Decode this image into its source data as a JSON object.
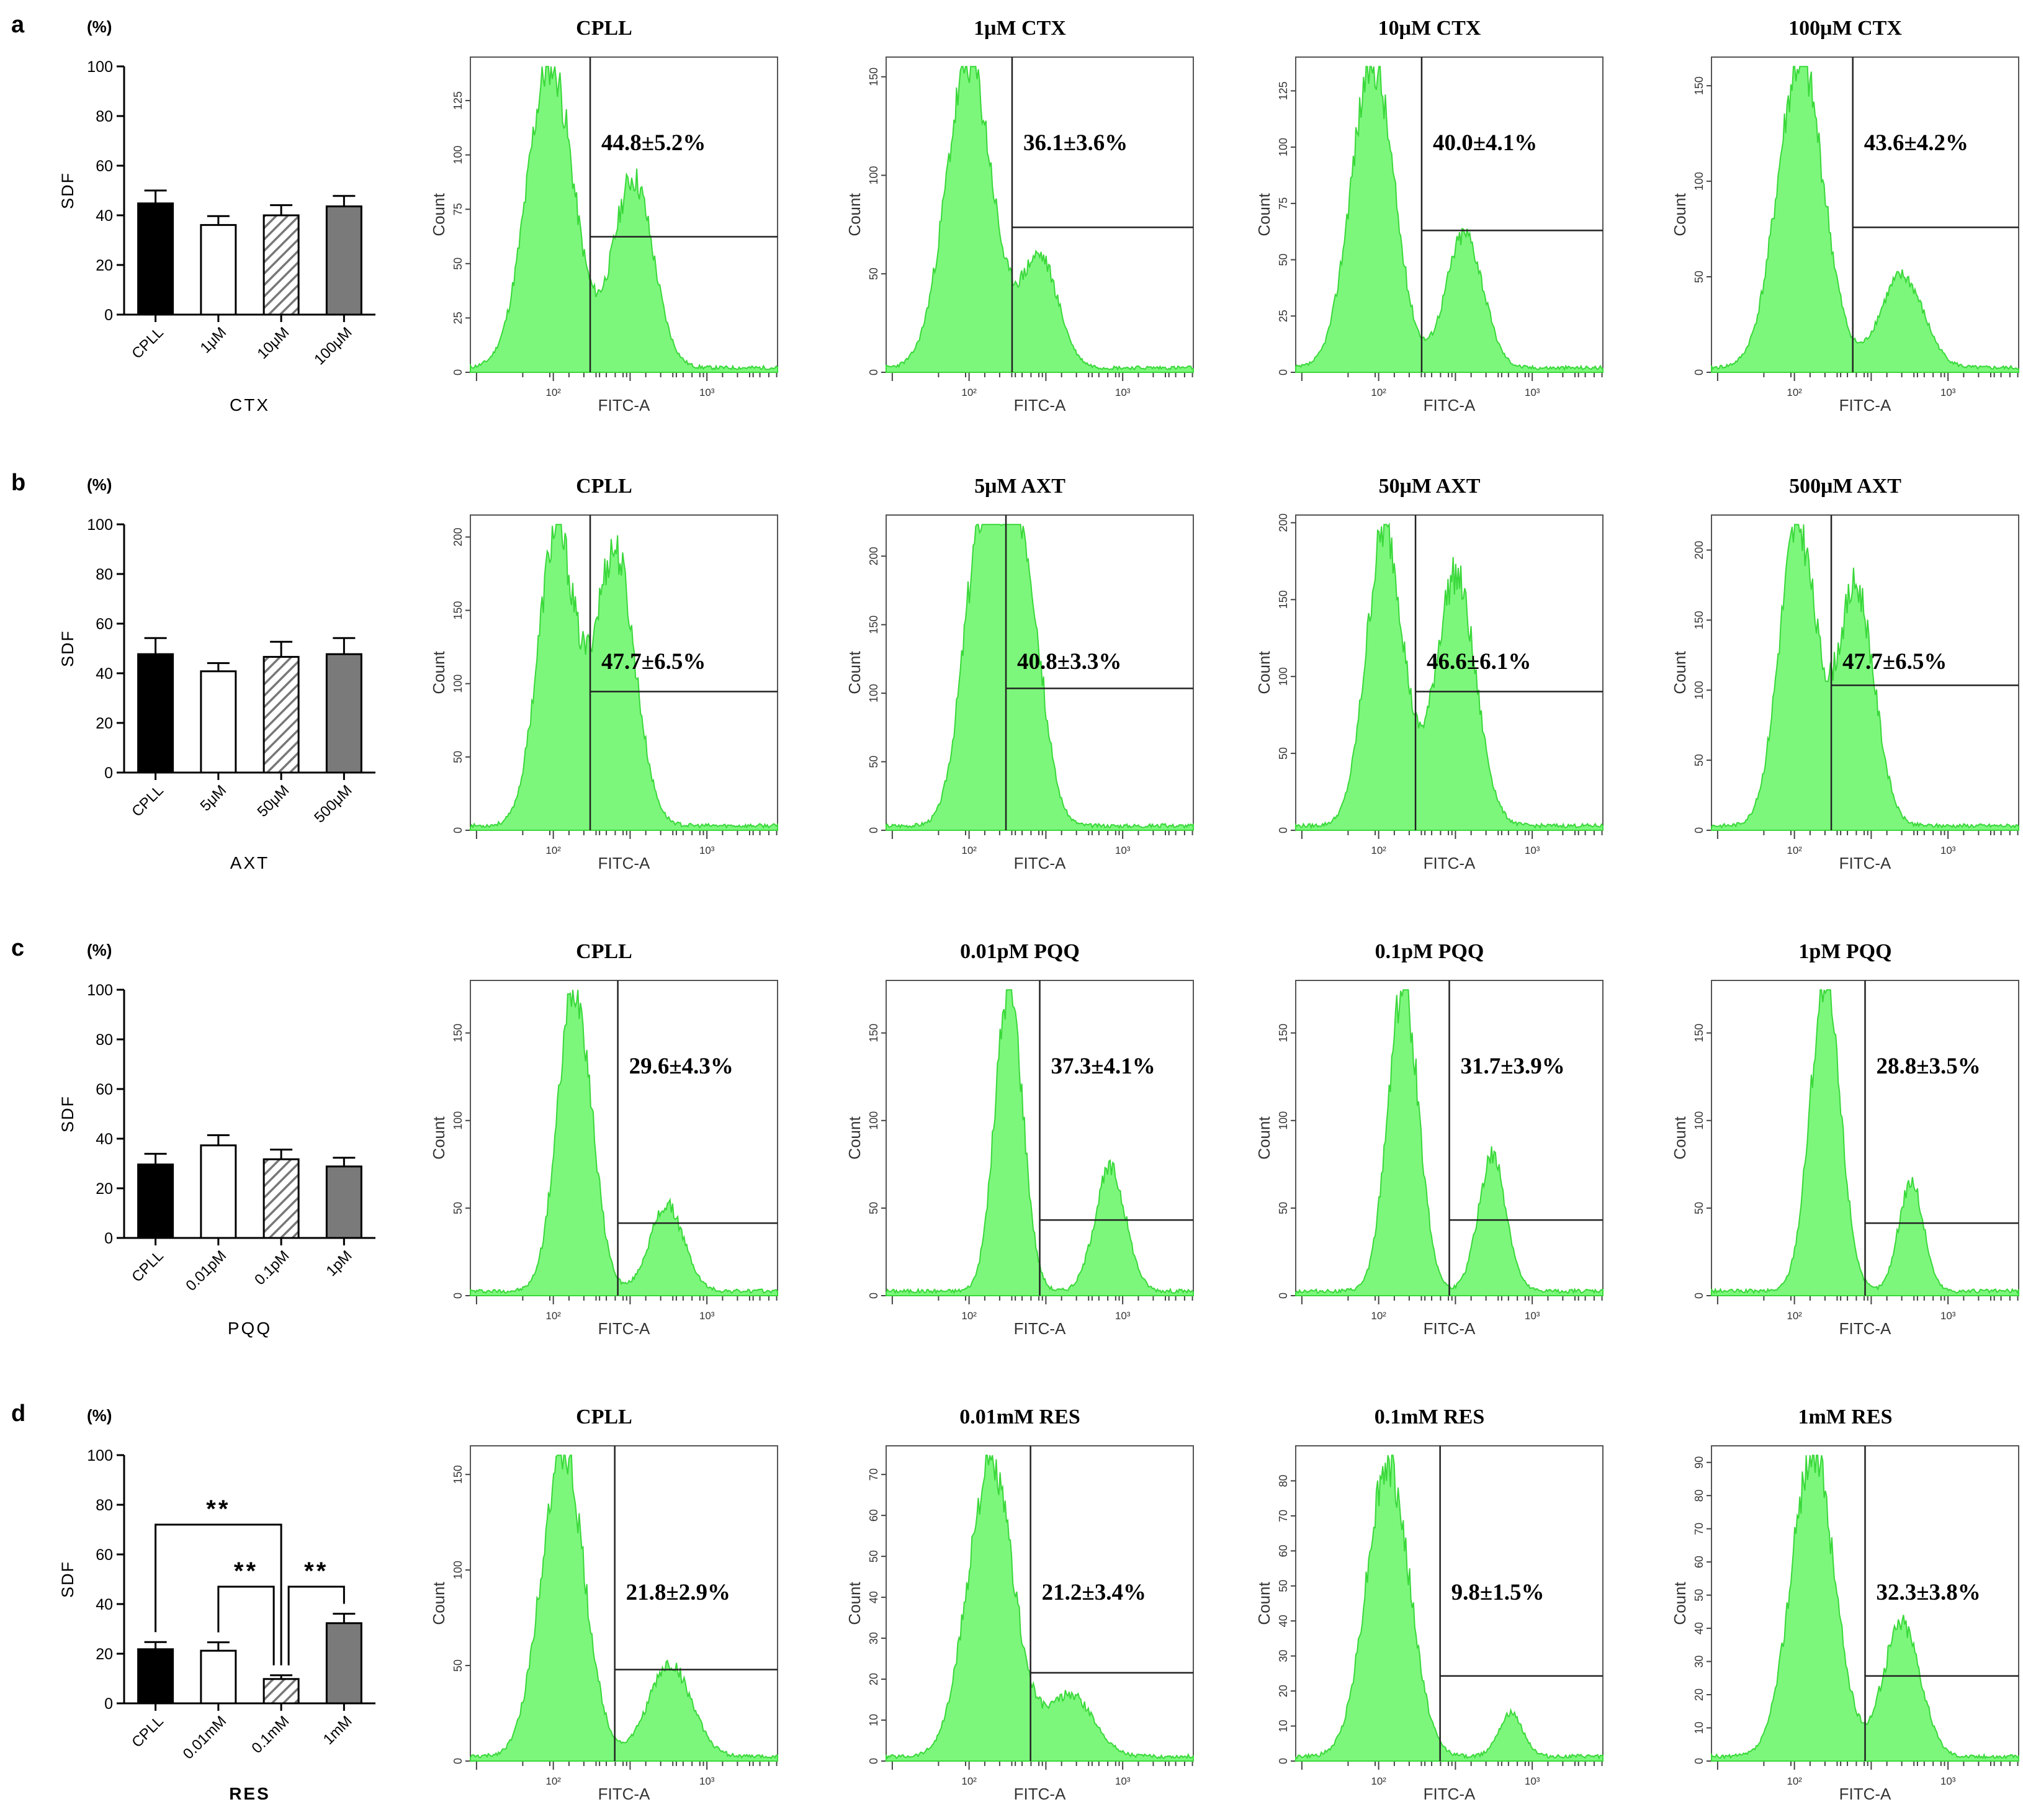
{
  "chart_data": [
    {
      "type": "bar",
      "panel": "a",
      "unit": "(%)",
      "ylabel": "SDF",
      "xlabel": "CTX",
      "ylim": [
        0,
        100
      ],
      "yticks": [
        "0",
        "20",
        "40",
        "60",
        "80",
        "100"
      ],
      "categories": [
        "CPLL",
        "1μM",
        "10μM",
        "100μM"
      ],
      "values": [
        44.8,
        36.1,
        40.0,
        43.6
      ],
      "errors": [
        5.2,
        3.6,
        4.1,
        4.2
      ],
      "fills": [
        "black",
        "white",
        "hatch",
        "gray"
      ],
      "significance": []
    },
    {
      "type": "bar",
      "panel": "b",
      "unit": "(%)",
      "ylabel": "SDF",
      "xlabel": "AXT",
      "ylim": [
        0,
        100
      ],
      "yticks": [
        "0",
        "20",
        "40",
        "60",
        "80",
        "100"
      ],
      "categories": [
        "CPLL",
        "5μM",
        "50μM",
        "500μM"
      ],
      "values": [
        47.7,
        40.8,
        46.6,
        47.7
      ],
      "errors": [
        6.5,
        3.3,
        6.1,
        6.5
      ],
      "fills": [
        "black",
        "white",
        "hatch",
        "gray"
      ],
      "significance": []
    },
    {
      "type": "bar",
      "panel": "c",
      "unit": "(%)",
      "ylabel": "SDF",
      "xlabel": "PQQ",
      "ylim": [
        0,
        100
      ],
      "yticks": [
        "0",
        "20",
        "40",
        "60",
        "80",
        "100"
      ],
      "categories": [
        "CPLL",
        "0.01pM",
        "0.1pM",
        "1pM"
      ],
      "values": [
        29.6,
        37.3,
        31.7,
        28.8
      ],
      "errors": [
        4.3,
        4.1,
        3.9,
        3.5
      ],
      "fills": [
        "black",
        "white",
        "hatch",
        "gray"
      ],
      "significance": []
    },
    {
      "type": "bar",
      "panel": "d",
      "unit": "(%)",
      "ylabel": "SDF",
      "xlabel": "RES",
      "xlabel_bold": true,
      "ylim": [
        0,
        100
      ],
      "yticks": [
        "0",
        "20",
        "40",
        "60",
        "80",
        "100"
      ],
      "categories": [
        "CPLL",
        "0.01mM",
        "0.1mM",
        "1mM"
      ],
      "values": [
        21.8,
        21.2,
        9.8,
        32.3
      ],
      "errors": [
        2.9,
        3.4,
        1.5,
        3.8
      ],
      "fills": [
        "black",
        "white",
        "hatch",
        "gray"
      ],
      "significance": [
        {
          "from": 0,
          "to": 2,
          "label": "**",
          "y": 72
        },
        {
          "from": 1,
          "to": 2,
          "label": "**",
          "y": 47
        },
        {
          "from": 2,
          "to": 3,
          "label": "**",
          "y": 47
        }
      ]
    },
    {
      "type": "histogram",
      "row": 0,
      "col": 0,
      "title": "CPLL",
      "pct_label": "44.8±5.2%",
      "xlabel": "FITC-A",
      "ylabel": "Count",
      "ymax": 145,
      "yticks": [
        0,
        25,
        50,
        75,
        100,
        125
      ],
      "x_decade_labels": [
        "10²",
        "10³"
      ],
      "gate_x": 0.39,
      "gate_y": 0.43,
      "peaks": [
        {
          "center": 0.26,
          "width": 0.075,
          "height": 1.0
        },
        {
          "center": 0.53,
          "width": 0.065,
          "height": 0.62
        }
      ],
      "noise_seed": 11
    },
    {
      "type": "histogram",
      "row": 0,
      "col": 1,
      "title": "1μM CTX",
      "pct_label": "36.1±3.6%",
      "xlabel": "FITC-A",
      "ylabel": "Count",
      "ymax": 160,
      "yticks": [
        0,
        50,
        100,
        150
      ],
      "x_decade_labels": [
        "10²",
        "10³"
      ],
      "gate_x": 0.41,
      "gate_y": 0.46,
      "peaks": [
        {
          "center": 0.27,
          "width": 0.075,
          "height": 1.0
        },
        {
          "center": 0.5,
          "width": 0.06,
          "height": 0.36
        }
      ],
      "noise_seed": 23
    },
    {
      "type": "histogram",
      "row": 0,
      "col": 2,
      "title": "10μM CTX",
      "pct_label": "40.0±4.1%",
      "xlabel": "FITC-A",
      "ylabel": "Count",
      "ymax": 140,
      "yticks": [
        0,
        25,
        50,
        75,
        100,
        125
      ],
      "x_decade_labels": [
        "10²",
        "10³"
      ],
      "gate_x": 0.41,
      "gate_y": 0.45,
      "peaks": [
        {
          "center": 0.25,
          "width": 0.07,
          "height": 1.0
        },
        {
          "center": 0.55,
          "width": 0.06,
          "height": 0.44
        }
      ],
      "noise_seed": 37
    },
    {
      "type": "histogram",
      "row": 0,
      "col": 3,
      "title": "100μM CTX",
      "pct_label": "43.6±4.2%",
      "xlabel": "FITC-A",
      "ylabel": "Count",
      "ymax": 165,
      "yticks": [
        0,
        50,
        100,
        150
      ],
      "x_decade_labels": [
        "10²",
        "10³"
      ],
      "gate_x": 0.46,
      "gate_y": 0.46,
      "peaks": [
        {
          "center": 0.29,
          "width": 0.075,
          "height": 1.0
        },
        {
          "center": 0.62,
          "width": 0.07,
          "height": 0.3
        }
      ],
      "noise_seed": 41
    },
    {
      "type": "histogram",
      "row": 1,
      "col": 0,
      "title": "CPLL",
      "pct_label": "47.7±6.5%",
      "xlabel": "FITC-A",
      "ylabel": "Count",
      "ymax": 215,
      "yticks": [
        0,
        50,
        100,
        150,
        200
      ],
      "x_decade_labels": [
        "10²",
        "10³"
      ],
      "gate_x": 0.39,
      "gate_y": 0.44,
      "peaks": [
        {
          "center": 0.28,
          "width": 0.06,
          "height": 0.96
        },
        {
          "center": 0.47,
          "width": 0.065,
          "height": 0.9
        }
      ],
      "noise_seed": 53
    },
    {
      "type": "histogram",
      "row": 1,
      "col": 1,
      "title": "5μM AXT",
      "pct_label": "40.8±3.3%",
      "xlabel": "FITC-A",
      "ylabel": "Count",
      "ymax": 230,
      "yticks": [
        0,
        50,
        100,
        150,
        200
      ],
      "x_decade_labels": [
        "10²",
        "10³"
      ],
      "gate_x": 0.39,
      "gate_y": 0.45,
      "peaks": [
        {
          "center": 0.31,
          "width": 0.06,
          "height": 0.95
        },
        {
          "center": 0.44,
          "width": 0.06,
          "height": 0.93
        }
      ],
      "noise_seed": 67
    },
    {
      "type": "histogram",
      "row": 1,
      "col": 2,
      "title": "50μM AXT",
      "pct_label": "46.6±6.1%",
      "xlabel": "FITC-A",
      "ylabel": "Count",
      "ymax": 205,
      "yticks": [
        0,
        50,
        100,
        150,
        200
      ],
      "x_decade_labels": [
        "10²",
        "10³"
      ],
      "gate_x": 0.39,
      "gate_y": 0.44,
      "peaks": [
        {
          "center": 0.29,
          "width": 0.06,
          "height": 0.97
        },
        {
          "center": 0.52,
          "width": 0.065,
          "height": 0.82
        }
      ],
      "noise_seed": 79
    },
    {
      "type": "histogram",
      "row": 1,
      "col": 3,
      "title": "500μM AXT",
      "pct_label": "47.7±6.5%",
      "xlabel": "FITC-A",
      "ylabel": "Count",
      "ymax": 225,
      "yticks": [
        0,
        50,
        100,
        150,
        200
      ],
      "x_decade_labels": [
        "10²",
        "10³"
      ],
      "gate_x": 0.39,
      "gate_y": 0.46,
      "peaks": [
        {
          "center": 0.28,
          "width": 0.06,
          "height": 0.98
        },
        {
          "center": 0.47,
          "width": 0.06,
          "height": 0.78
        }
      ],
      "noise_seed": 83
    },
    {
      "type": "histogram",
      "row": 2,
      "col": 0,
      "title": "CPLL",
      "pct_label": "29.6±4.3%",
      "xlabel": "FITC-A",
      "ylabel": "Count",
      "ymax": 180,
      "yticks": [
        0,
        50,
        100,
        150
      ],
      "x_decade_labels": [
        "10²",
        "10³"
      ],
      "gate_x": 0.48,
      "gate_y": 0.23,
      "peaks": [
        {
          "center": 0.34,
          "width": 0.055,
          "height": 1.0
        },
        {
          "center": 0.64,
          "width": 0.055,
          "height": 0.28
        }
      ],
      "noise_seed": 97
    },
    {
      "type": "histogram",
      "row": 2,
      "col": 1,
      "title": "0.01pM PQQ",
      "pct_label": "37.3±4.1%",
      "xlabel": "FITC-A",
      "ylabel": "Count",
      "ymax": 180,
      "yticks": [
        0,
        50,
        100,
        150
      ],
      "x_decade_labels": [
        "10²",
        "10³"
      ],
      "gate_x": 0.5,
      "gate_y": 0.24,
      "peaks": [
        {
          "center": 0.4,
          "width": 0.045,
          "height": 1.0
        },
        {
          "center": 0.73,
          "width": 0.05,
          "height": 0.4
        }
      ],
      "noise_seed": 101
    },
    {
      "type": "histogram",
      "row": 2,
      "col": 2,
      "title": "0.1pM PQQ",
      "pct_label": "31.7±3.9%",
      "xlabel": "FITC-A",
      "ylabel": "Count",
      "ymax": 180,
      "yticks": [
        0,
        50,
        100,
        150
      ],
      "x_decade_labels": [
        "10²",
        "10³"
      ],
      "gate_x": 0.5,
      "gate_y": 0.24,
      "peaks": [
        {
          "center": 0.35,
          "width": 0.05,
          "height": 1.0
        },
        {
          "center": 0.64,
          "width": 0.045,
          "height": 0.44
        }
      ],
      "noise_seed": 113
    },
    {
      "type": "histogram",
      "row": 2,
      "col": 3,
      "title": "1pM PQQ",
      "pct_label": "28.8±3.5%",
      "xlabel": "FITC-A",
      "ylabel": "Count",
      "ymax": 180,
      "yticks": [
        0,
        50,
        100,
        150
      ],
      "x_decade_labels": [
        "10²",
        "10³"
      ],
      "gate_x": 0.5,
      "gate_y": 0.23,
      "peaks": [
        {
          "center": 0.37,
          "width": 0.05,
          "height": 1.0
        },
        {
          "center": 0.65,
          "width": 0.04,
          "height": 0.36
        }
      ],
      "noise_seed": 127
    },
    {
      "type": "histogram",
      "row": 3,
      "col": 0,
      "title": "CPLL",
      "pct_label": "21.8±2.9%",
      "xlabel": "FITC-A",
      "ylabel": "Count",
      "ymax": 165,
      "yticks": [
        0,
        50,
        100,
        150
      ],
      "x_decade_labels": [
        "10²",
        "10³"
      ],
      "gate_x": 0.47,
      "gate_y": 0.29,
      "peaks": [
        {
          "center": 0.3,
          "width": 0.07,
          "height": 1.0
        },
        {
          "center": 0.65,
          "width": 0.07,
          "height": 0.3
        }
      ],
      "noise_seed": 131
    },
    {
      "type": "histogram",
      "row": 3,
      "col": 1,
      "title": "0.01mM RES",
      "pct_label": "21.2±3.4%",
      "xlabel": "FITC-A",
      "ylabel": "Count",
      "ymax": 77,
      "yticks": [
        0,
        10,
        20,
        30,
        40,
        50,
        60,
        70
      ],
      "x_decade_labels": [
        "10²",
        "10³"
      ],
      "gate_x": 0.47,
      "gate_y": 0.28,
      "peaks": [
        {
          "center": 0.34,
          "width": 0.075,
          "height": 0.95
        },
        {
          "center": 0.6,
          "width": 0.075,
          "height": 0.2
        }
      ],
      "noise_seed": 139
    },
    {
      "type": "histogram",
      "row": 3,
      "col": 2,
      "title": "0.1mM RES",
      "pct_label": "9.8±1.5%",
      "xlabel": "FITC-A",
      "ylabel": "Count",
      "ymax": 90,
      "yticks": [
        0,
        10,
        20,
        30,
        40,
        50,
        60,
        70,
        80
      ],
      "x_decade_labels": [
        "10²",
        "10³"
      ],
      "gate_x": 0.47,
      "gate_y": 0.27,
      "peaks": [
        {
          "center": 0.3,
          "width": 0.07,
          "height": 0.95
        },
        {
          "center": 0.7,
          "width": 0.04,
          "height": 0.14
        }
      ],
      "noise_seed": 149
    },
    {
      "type": "histogram",
      "row": 3,
      "col": 3,
      "title": "1mM RES",
      "pct_label": "32.3±3.8%",
      "xlabel": "FITC-A",
      "ylabel": "Count",
      "ymax": 95,
      "yticks": [
        0,
        10,
        20,
        30,
        40,
        50,
        60,
        70,
        80,
        90
      ],
      "x_decade_labels": [
        "10²",
        "10³"
      ],
      "gate_x": 0.5,
      "gate_y": 0.27,
      "peaks": [
        {
          "center": 0.33,
          "width": 0.07,
          "height": 1.0
        },
        {
          "center": 0.62,
          "width": 0.06,
          "height": 0.44
        }
      ],
      "noise_seed": 157
    }
  ]
}
